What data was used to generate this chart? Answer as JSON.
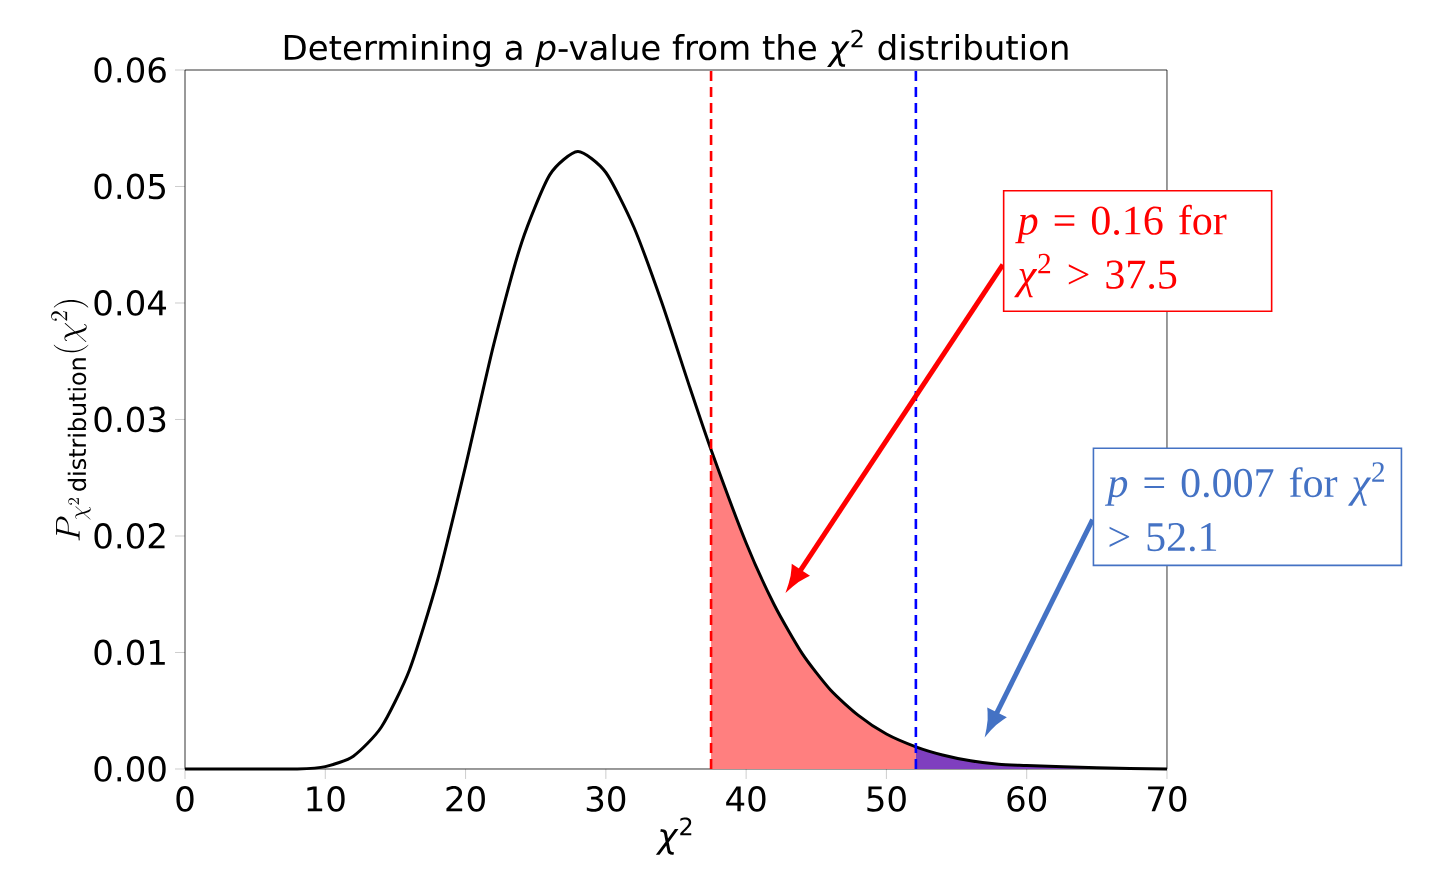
{
  "chart_data": {
    "type": "line",
    "title": "Determining a *p*-value from the *χ*$^{2}$ distribution",
    "xlabel": "*χ*$^{2}$",
    "ylabel": "P_{\\chi^2\\,\\mathrm{distribution}}(\\chi^2)",
    "xlim": [
      0,
      70
    ],
    "ylim": [
      0,
      0.06
    ],
    "xticks": [
      0,
      10,
      20,
      30,
      40,
      50,
      60,
      70
    ],
    "yticks": [
      {
        "value": 0,
        "label": "0.00"
      },
      {
        "value": 0.01,
        "label": "0.01"
      },
      {
        "value": 0.02,
        "label": "0.02"
      },
      {
        "value": 0.03,
        "label": "0.03"
      },
      {
        "value": 0.04,
        "label": "0.04"
      },
      {
        "value": 0.05,
        "label": "0.05"
      },
      {
        "value": 0.06,
        "label": "0.06"
      }
    ],
    "series": [
      {
        "type": "area",
        "color": "#ff7f7f",
        "x": [
          37.5,
          40,
          42,
          44,
          46,
          48,
          50,
          52.1
        ],
        "values": [
          0.0274,
          0.0194,
          0.0141,
          0.0099,
          0.0068,
          0.0046,
          0.003,
          0.0019
        ]
      },
      {
        "type": "area",
        "color": "#7f3fbf",
        "x": [
          52.1,
          54,
          56,
          58,
          60,
          65,
          70
        ],
        "values": [
          0.0019,
          0.0012,
          0.0007,
          0.0004,
          0.0003,
          0.0001,
          0.0
        ]
      },
      {
        "color": "#000000",
        "x": [
          0,
          5,
          8,
          10,
          12,
          14,
          16,
          18,
          20,
          22,
          24,
          26,
          28,
          30,
          32,
          34,
          36,
          37.5,
          40,
          42,
          44,
          46,
          48,
          50,
          52.1,
          54,
          56,
          58,
          60,
          65,
          70
        ],
        "values": [
          0.0,
          0.0,
          0.0,
          0.0002,
          0.0011,
          0.0036,
          0.0085,
          0.0162,
          0.026,
          0.0364,
          0.0452,
          0.051,
          0.053,
          0.0512,
          0.0465,
          0.04,
          0.0327,
          0.0274,
          0.0194,
          0.0141,
          0.0099,
          0.0068,
          0.0046,
          0.003,
          0.0019,
          0.0012,
          0.0007,
          0.0004,
          0.0003,
          0.0001,
          0.0
        ]
      }
    ],
    "ref_lines": [
      {
        "axis": "x",
        "value": 37.5,
        "color": "#ff0000",
        "line_style": "dashed"
      },
      {
        "axis": "x",
        "value": 52.1,
        "color": "#0000ff",
        "line_style": "dashed"
      }
    ],
    "annotations": [
      "*p* = 0.16 for *χ*$^{2}$ > 37.5",
      "*p* = 0.007 for *χ*$^{2}$ > 52.1"
    ]
  }
}
